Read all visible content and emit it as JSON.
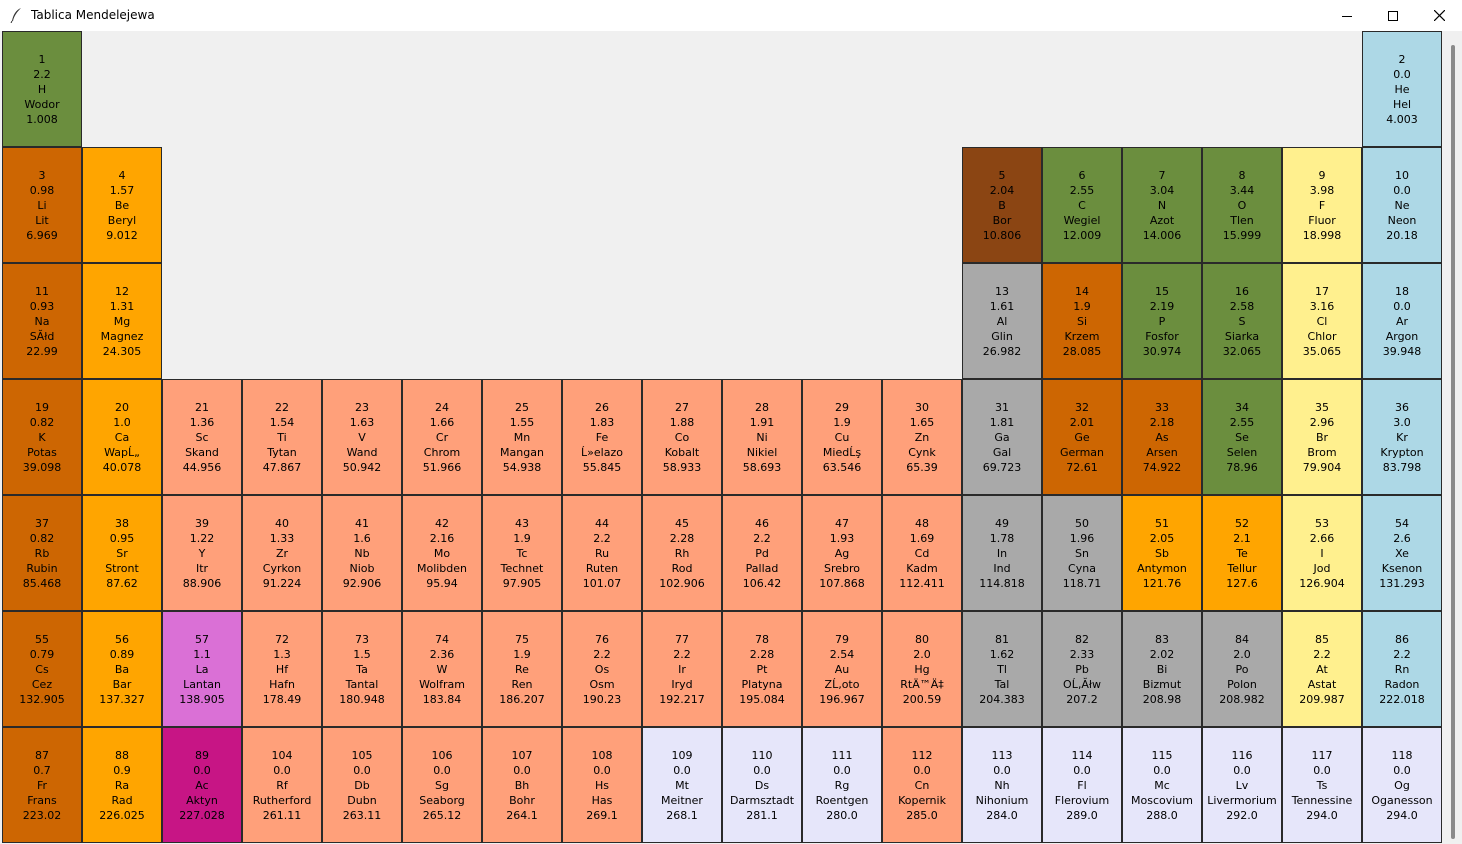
{
  "window": {
    "title": "Tablica Mendelejewa",
    "icon": "feather-icon",
    "controls": [
      "minimize-icon",
      "maximize-icon",
      "close-icon"
    ]
  },
  "category_colors": {
    "nonmetal": "#6b8e3e",
    "noble_gas": "#add8e6",
    "alkali_metal": "#cd6602",
    "alkaline_earth": "#ffa500",
    "metalloid": "#8b4513",
    "halogen": "#fff08e",
    "transition_metal": "#ffa07a",
    "post_transition": "#a9a9a9",
    "lanthanide": "#da70d6",
    "actinide": "#c71585",
    "unknown": "#e6e6fa"
  },
  "elements": [
    {
      "number": "1",
      "electronegativity": "2.2",
      "symbol": "H",
      "name": "Wodor",
      "mass": "1.008",
      "category": "nonmetal"
    },
    {
      "number": "2",
      "electronegativity": "0.0",
      "symbol": "He",
      "name": "Hel",
      "mass": "4.003",
      "category": "noble_gas"
    },
    {
      "number": "3",
      "electronegativity": "0.98",
      "symbol": "Li",
      "name": "Lit",
      "mass": "6.969",
      "category": "alkali_metal"
    },
    {
      "number": "4",
      "electronegativity": "1.57",
      "symbol": "Be",
      "name": "Beryl",
      "mass": "9.012",
      "category": "alkaline_earth"
    },
    {
      "number": "5",
      "electronegativity": "2.04",
      "symbol": "B",
      "name": "Bor",
      "mass": "10.806",
      "category": "metalloid"
    },
    {
      "number": "6",
      "electronegativity": "2.55",
      "symbol": "C",
      "name": "Wegiel",
      "mass": "12.009",
      "category": "nonmetal"
    },
    {
      "number": "7",
      "electronegativity": "3.04",
      "symbol": "N",
      "name": "Azot",
      "mass": "14.006",
      "category": "nonmetal"
    },
    {
      "number": "8",
      "electronegativity": "3.44",
      "symbol": "O",
      "name": "Tlen",
      "mass": "15.999",
      "category": "nonmetal"
    },
    {
      "number": "9",
      "electronegativity": "3.98",
      "symbol": "F",
      "name": "Fluor",
      "mass": "18.998",
      "category": "halogen"
    },
    {
      "number": "10",
      "electronegativity": "0.0",
      "symbol": "Ne",
      "name": "Neon",
      "mass": "20.18",
      "category": "noble_gas"
    },
    {
      "number": "11",
      "electronegativity": "0.93",
      "symbol": "Na",
      "name": "SĂłd",
      "mass": "22.99",
      "category": "alkali_metal"
    },
    {
      "number": "12",
      "electronegativity": "1.31",
      "symbol": "Mg",
      "name": "Magnez",
      "mass": "24.305",
      "category": "alkaline_earth"
    },
    {
      "number": "13",
      "electronegativity": "1.61",
      "symbol": "Al",
      "name": "Glin",
      "mass": "26.982",
      "category": "post_transition"
    },
    {
      "number": "14",
      "electronegativity": "1.9",
      "symbol": "Si",
      "name": "Krzem",
      "mass": "28.085",
      "category": "alkali_metal"
    },
    {
      "number": "15",
      "electronegativity": "2.19",
      "symbol": "P",
      "name": "Fosfor",
      "mass": "30.974",
      "category": "nonmetal"
    },
    {
      "number": "16",
      "electronegativity": "2.58",
      "symbol": "S",
      "name": "Siarka",
      "mass": "32.065",
      "category": "nonmetal"
    },
    {
      "number": "17",
      "electronegativity": "3.16",
      "symbol": "Cl",
      "name": "Chlor",
      "mass": "35.065",
      "category": "halogen"
    },
    {
      "number": "18",
      "electronegativity": "0.0",
      "symbol": "Ar",
      "name": "Argon",
      "mass": "39.948",
      "category": "noble_gas"
    },
    {
      "number": "19",
      "electronegativity": "0.82",
      "symbol": "K",
      "name": "Potas",
      "mass": "39.098",
      "category": "alkali_metal"
    },
    {
      "number": "20",
      "electronegativity": "1.0",
      "symbol": "Ca",
      "name": "WapĹ„",
      "mass": "40.078",
      "category": "alkaline_earth"
    },
    {
      "number": "21",
      "electronegativity": "1.36",
      "symbol": "Sc",
      "name": "Skand",
      "mass": "44.956",
      "category": "transition_metal"
    },
    {
      "number": "22",
      "electronegativity": "1.54",
      "symbol": "Ti",
      "name": "Tytan",
      "mass": "47.867",
      "category": "transition_metal"
    },
    {
      "number": "23",
      "electronegativity": "1.63",
      "symbol": "V",
      "name": "Wand",
      "mass": "50.942",
      "category": "transition_metal"
    },
    {
      "number": "24",
      "electronegativity": "1.66",
      "symbol": "Cr",
      "name": "Chrom",
      "mass": "51.966",
      "category": "transition_metal"
    },
    {
      "number": "25",
      "electronegativity": "1.55",
      "symbol": "Mn",
      "name": "Mangan",
      "mass": "54.938",
      "category": "transition_metal"
    },
    {
      "number": "26",
      "electronegativity": "1.83",
      "symbol": "Fe",
      "name": "Ĺ»elazo",
      "mass": "55.845",
      "category": "transition_metal"
    },
    {
      "number": "27",
      "electronegativity": "1.88",
      "symbol": "Co",
      "name": "Kobalt",
      "mass": "58.933",
      "category": "transition_metal"
    },
    {
      "number": "28",
      "electronegativity": "1.91",
      "symbol": "Ni",
      "name": "Nikiel",
      "mass": "58.693",
      "category": "transition_metal"
    },
    {
      "number": "29",
      "electronegativity": "1.9",
      "symbol": "Cu",
      "name": "MiedĹş",
      "mass": "63.546",
      "category": "transition_metal"
    },
    {
      "number": "30",
      "electronegativity": "1.65",
      "symbol": "Zn",
      "name": "Cynk",
      "mass": "65.39",
      "category": "transition_metal"
    },
    {
      "number": "31",
      "electronegativity": "1.81",
      "symbol": "Ga",
      "name": "Gal",
      "mass": "69.723",
      "category": "post_transition"
    },
    {
      "number": "32",
      "electronegativity": "2.01",
      "symbol": "Ge",
      "name": "German",
      "mass": "72.61",
      "category": "alkali_metal"
    },
    {
      "number": "33",
      "electronegativity": "2.18",
      "symbol": "As",
      "name": "Arsen",
      "mass": "74.922",
      "category": "alkali_metal"
    },
    {
      "number": "34",
      "electronegativity": "2.55",
      "symbol": "Se",
      "name": "Selen",
      "mass": "78.96",
      "category": "nonmetal"
    },
    {
      "number": "35",
      "electronegativity": "2.96",
      "symbol": "Br",
      "name": "Brom",
      "mass": "79.904",
      "category": "halogen"
    },
    {
      "number": "36",
      "electronegativity": "3.0",
      "symbol": "Kr",
      "name": "Krypton",
      "mass": "83.798",
      "category": "noble_gas"
    },
    {
      "number": "37",
      "electronegativity": "0.82",
      "symbol": "Rb",
      "name": "Rubin",
      "mass": "85.468",
      "category": "alkali_metal"
    },
    {
      "number": "38",
      "electronegativity": "0.95",
      "symbol": "Sr",
      "name": "Stront",
      "mass": "87.62",
      "category": "alkaline_earth"
    },
    {
      "number": "39",
      "electronegativity": "1.22",
      "symbol": "Y",
      "name": "Itr",
      "mass": "88.906",
      "category": "transition_metal"
    },
    {
      "number": "40",
      "electronegativity": "1.33",
      "symbol": "Zr",
      "name": "Cyrkon",
      "mass": "91.224",
      "category": "transition_metal"
    },
    {
      "number": "41",
      "electronegativity": "1.6",
      "symbol": "Nb",
      "name": "Niob",
      "mass": "92.906",
      "category": "transition_metal"
    },
    {
      "number": "42",
      "electronegativity": "2.16",
      "symbol": "Mo",
      "name": "Molibden",
      "mass": "95.94",
      "category": "transition_metal"
    },
    {
      "number": "43",
      "electronegativity": "1.9",
      "symbol": "Tc",
      "name": "Technet",
      "mass": "97.905",
      "category": "transition_metal"
    },
    {
      "number": "44",
      "electronegativity": "2.2",
      "symbol": "Ru",
      "name": "Ruten",
      "mass": "101.07",
      "category": "transition_metal"
    },
    {
      "number": "45",
      "electronegativity": "2.28",
      "symbol": "Rh",
      "name": "Rod",
      "mass": "102.906",
      "category": "transition_metal"
    },
    {
      "number": "46",
      "electronegativity": "2.2",
      "symbol": "Pd",
      "name": "Pallad",
      "mass": "106.42",
      "category": "transition_metal"
    },
    {
      "number": "47",
      "electronegativity": "1.93",
      "symbol": "Ag",
      "name": "Srebro",
      "mass": "107.868",
      "category": "transition_metal"
    },
    {
      "number": "48",
      "electronegativity": "1.69",
      "symbol": "Cd",
      "name": "Kadm",
      "mass": "112.411",
      "category": "transition_metal"
    },
    {
      "number": "49",
      "electronegativity": "1.78",
      "symbol": "In",
      "name": "Ind",
      "mass": "114.818",
      "category": "post_transition"
    },
    {
      "number": "50",
      "electronegativity": "1.96",
      "symbol": "Sn",
      "name": "Cyna",
      "mass": "118.71",
      "category": "post_transition"
    },
    {
      "number": "51",
      "electronegativity": "2.05",
      "symbol": "Sb",
      "name": "Antymon",
      "mass": "121.76",
      "category": "alkaline_earth"
    },
    {
      "number": "52",
      "electronegativity": "2.1",
      "symbol": "Te",
      "name": "Tellur",
      "mass": "127.6",
      "category": "alkaline_earth"
    },
    {
      "number": "53",
      "electronegativity": "2.66",
      "symbol": "I",
      "name": "Jod",
      "mass": "126.904",
      "category": "halogen"
    },
    {
      "number": "54",
      "electronegativity": "2.6",
      "symbol": "Xe",
      "name": "Ksenon",
      "mass": "131.293",
      "category": "noble_gas"
    },
    {
      "number": "55",
      "electronegativity": "0.79",
      "symbol": "Cs",
      "name": "Cez",
      "mass": "132.905",
      "category": "alkali_metal"
    },
    {
      "number": "56",
      "electronegativity": "0.89",
      "symbol": "Ba",
      "name": "Bar",
      "mass": "137.327",
      "category": "alkaline_earth"
    },
    {
      "number": "57",
      "electronegativity": "1.1",
      "symbol": "La",
      "name": "Lantan",
      "mass": "138.905",
      "category": "lanthanide"
    },
    {
      "number": "72",
      "electronegativity": "1.3",
      "symbol": "Hf",
      "name": "Hafn",
      "mass": "178.49",
      "category": "transition_metal"
    },
    {
      "number": "73",
      "electronegativity": "1.5",
      "symbol": "Ta",
      "name": "Tantal",
      "mass": "180.948",
      "category": "transition_metal"
    },
    {
      "number": "74",
      "electronegativity": "2.36",
      "symbol": "W",
      "name": "Wolfram",
      "mass": "183.84",
      "category": "transition_metal"
    },
    {
      "number": "75",
      "electronegativity": "1.9",
      "symbol": "Re",
      "name": "Ren",
      "mass": "186.207",
      "category": "transition_metal"
    },
    {
      "number": "76",
      "electronegativity": "2.2",
      "symbol": "Os",
      "name": "Osm",
      "mass": "190.23",
      "category": "transition_metal"
    },
    {
      "number": "77",
      "electronegativity": "2.2",
      "symbol": "Ir",
      "name": "Iryd",
      "mass": "192.217",
      "category": "transition_metal"
    },
    {
      "number": "78",
      "electronegativity": "2.28",
      "symbol": "Pt",
      "name": "Platyna",
      "mass": "195.084",
      "category": "transition_metal"
    },
    {
      "number": "79",
      "electronegativity": "2.54",
      "symbol": "Au",
      "name": "ZĹ‚oto",
      "mass": "196.967",
      "category": "transition_metal"
    },
    {
      "number": "80",
      "electronegativity": "2.0",
      "symbol": "Hg",
      "name": "RtÄ™Ä‡",
      "mass": "200.59",
      "category": "transition_metal"
    },
    {
      "number": "81",
      "electronegativity": "1.62",
      "symbol": "Tl",
      "name": "Tal",
      "mass": "204.383",
      "category": "post_transition"
    },
    {
      "number": "82",
      "electronegativity": "2.33",
      "symbol": "Pb",
      "name": "OĹ‚Ăłw",
      "mass": "207.2",
      "category": "post_transition"
    },
    {
      "number": "83",
      "electronegativity": "2.02",
      "symbol": "Bi",
      "name": "Bizmut",
      "mass": "208.98",
      "category": "post_transition"
    },
    {
      "number": "84",
      "electronegativity": "2.0",
      "symbol": "Po",
      "name": "Polon",
      "mass": "208.982",
      "category": "post_transition"
    },
    {
      "number": "85",
      "electronegativity": "2.2",
      "symbol": "At",
      "name": "Astat",
      "mass": "209.987",
      "category": "halogen"
    },
    {
      "number": "86",
      "electronegativity": "2.2",
      "symbol": "Rn",
      "name": "Radon",
      "mass": "222.018",
      "category": "noble_gas"
    },
    {
      "number": "87",
      "electronegativity": "0.7",
      "symbol": "Fr",
      "name": "Frans",
      "mass": "223.02",
      "category": "alkali_metal"
    },
    {
      "number": "88",
      "electronegativity": "0.9",
      "symbol": "Ra",
      "name": "Rad",
      "mass": "226.025",
      "category": "alkaline_earth"
    },
    {
      "number": "89",
      "electronegativity": "0.0",
      "symbol": "Ac",
      "name": "Aktyn",
      "mass": "227.028",
      "category": "actinide"
    },
    {
      "number": "104",
      "electronegativity": "0.0",
      "symbol": "Rf",
      "name": "Rutherford",
      "mass": "261.11",
      "category": "transition_metal"
    },
    {
      "number": "105",
      "electronegativity": "0.0",
      "symbol": "Db",
      "name": "Dubn",
      "mass": "263.11",
      "category": "transition_metal"
    },
    {
      "number": "106",
      "electronegativity": "0.0",
      "symbol": "Sg",
      "name": "Seaborg",
      "mass": "265.12",
      "category": "transition_metal"
    },
    {
      "number": "107",
      "electronegativity": "0.0",
      "symbol": "Bh",
      "name": "Bohr",
      "mass": "264.1",
      "category": "transition_metal"
    },
    {
      "number": "108",
      "electronegativity": "0.0",
      "symbol": "Hs",
      "name": "Has",
      "mass": "269.1",
      "category": "transition_metal"
    },
    {
      "number": "109",
      "electronegativity": "0.0",
      "symbol": "Mt",
      "name": "Meitner",
      "mass": "268.1",
      "category": "unknown"
    },
    {
      "number": "110",
      "electronegativity": "0.0",
      "symbol": "Ds",
      "name": "Darmsztadt",
      "mass": "281.1",
      "category": "unknown"
    },
    {
      "number": "111",
      "electronegativity": "0.0",
      "symbol": "Rg",
      "name": "Roentgen",
      "mass": "280.0",
      "category": "unknown"
    },
    {
      "number": "112",
      "electronegativity": "0.0",
      "symbol": "Cn",
      "name": "Kopernik",
      "mass": "285.0",
      "category": "transition_metal"
    },
    {
      "number": "113",
      "electronegativity": "0.0",
      "symbol": "Nh",
      "name": "Nihonium",
      "mass": "284.0",
      "category": "unknown"
    },
    {
      "number": "114",
      "electronegativity": "0.0",
      "symbol": "Fl",
      "name": "Flerovium",
      "mass": "289.0",
      "category": "unknown"
    },
    {
      "number": "115",
      "electronegativity": "0.0",
      "symbol": "Mc",
      "name": "Moscovium",
      "mass": "288.0",
      "category": "unknown"
    },
    {
      "number": "116",
      "electronegativity": "0.0",
      "symbol": "Lv",
      "name": "Livermorium",
      "mass": "292.0",
      "category": "unknown"
    },
    {
      "number": "117",
      "electronegativity": "0.0",
      "symbol": "Ts",
      "name": "Tennessine",
      "mass": "294.0",
      "category": "unknown"
    },
    {
      "number": "118",
      "electronegativity": "0.0",
      "symbol": "Og",
      "name": "Oganesson",
      "mass": "294.0",
      "category": "unknown"
    }
  ]
}
